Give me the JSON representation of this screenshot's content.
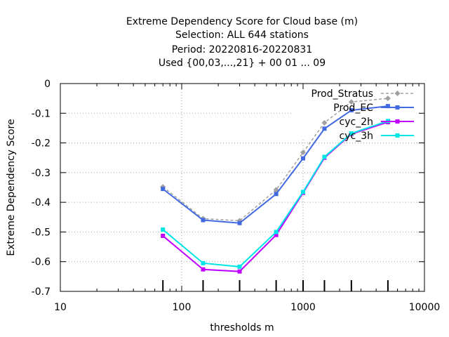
{
  "chart_data": {
    "type": "line",
    "title_lines": [
      "Extreme Dependency Score  for Cloud base (m)",
      "Selection: ALL    644 stations",
      "Period: 20220816-20220831",
      "Used {00,03,...,21} + 00 01 ... 09"
    ],
    "xlabel": "thresholds m",
    "ylabel": "Extreme Dependency Score",
    "x_scale": "log",
    "xlim": [
      10,
      10000
    ],
    "ylim": [
      -0.7,
      0
    ],
    "x_ticks": [
      10,
      100,
      1000,
      10000
    ],
    "x_tick_labels": [
      "10",
      "100",
      "1000",
      "10000"
    ],
    "y_ticks": [
      0,
      -0.1,
      -0.2,
      -0.3,
      -0.4,
      -0.5,
      -0.6,
      -0.7
    ],
    "y_tick_labels": [
      "0",
      "-0.1",
      "-0.2",
      "-0.3",
      "-0.4",
      "-0.5",
      "-0.6",
      "-0.7"
    ],
    "grid": true,
    "legend_position": "top-right",
    "x": [
      70,
      150,
      300,
      600,
      1000,
      1500,
      2500,
      5000
    ],
    "series": [
      {
        "name": "Prod_Stratus",
        "color": "#a0a0a0",
        "dashed": true,
        "values": [
          -0.348,
          -0.455,
          -0.462,
          -0.358,
          -0.232,
          -0.132,
          -0.062,
          -0.05
        ]
      },
      {
        "name": "Prod_EC",
        "color": "#4169e1",
        "dashed": false,
        "values": [
          -0.355,
          -0.46,
          -0.47,
          -0.372,
          -0.252,
          -0.152,
          -0.09,
          -0.076
        ]
      },
      {
        "name": "cyc_2h",
        "color": "#c000ff",
        "dashed": false,
        "values": [
          -0.513,
          -0.626,
          -0.633,
          -0.51,
          -0.368,
          -0.25,
          -0.17,
          -0.13
        ]
      },
      {
        "name": "cyc_3h",
        "color": "#00e5e5",
        "dashed": false,
        "values": [
          -0.492,
          -0.605,
          -0.617,
          -0.5,
          -0.365,
          -0.247,
          -0.168,
          -0.126
        ]
      }
    ]
  }
}
